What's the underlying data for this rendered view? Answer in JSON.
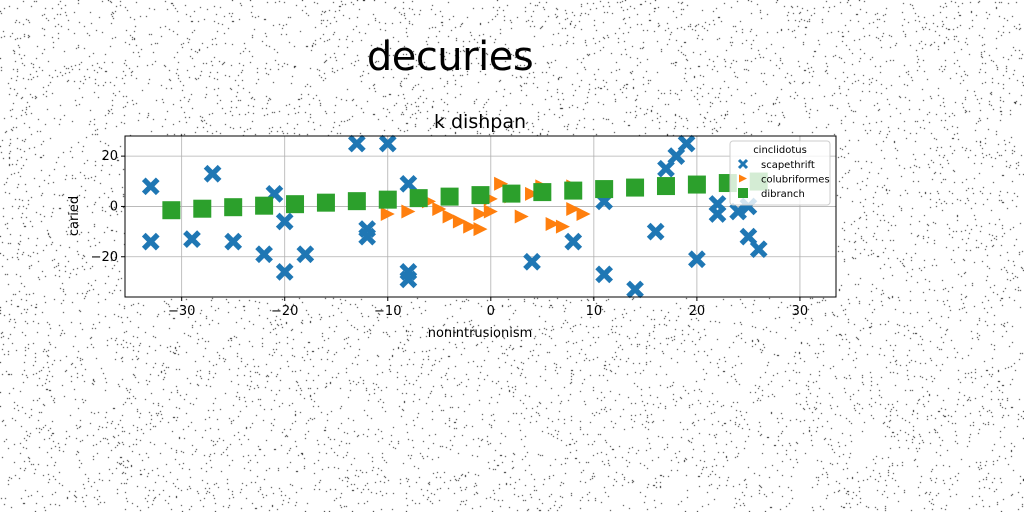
{
  "figure_title": "decuries",
  "chart_data": {
    "type": "scatter",
    "title": "k dishpan",
    "xlabel": "nonintrusionism",
    "ylabel": "caried",
    "xlim": [
      -35.5,
      33.5
    ],
    "ylim": [
      -36,
      28
    ],
    "xticks": [
      -30,
      -20,
      -10,
      0,
      10,
      20,
      30
    ],
    "yticks": [
      -20,
      0,
      20
    ],
    "xtick_labels": [
      "−30",
      "−20",
      "−10",
      "0",
      "10",
      "20",
      "30"
    ],
    "ytick_labels": [
      "−20",
      "0",
      "20"
    ],
    "grid": true,
    "legend": {
      "title": "cinclidotus",
      "position": "upper right"
    },
    "series": [
      {
        "name": "scapethrift",
        "marker": "x",
        "color": "#1f77b4",
        "x": [
          -33,
          -33,
          -29,
          -27,
          -25,
          -22,
          -21,
          -20,
          -20,
          -18,
          -13,
          -12,
          -12,
          -10,
          -8,
          -8,
          -8,
          4,
          8,
          11,
          11,
          14,
          16,
          17,
          18,
          19,
          20,
          22,
          22,
          24,
          25,
          25,
          26
        ],
        "y": [
          8,
          -14,
          -13,
          13,
          -14,
          -19,
          5,
          -6,
          -26,
          -19,
          25,
          -9,
          -12,
          25,
          9,
          -26,
          -29,
          -22,
          -14,
          2,
          -27,
          -33,
          -10,
          15,
          20,
          25,
          -21,
          1,
          -3,
          -2,
          0,
          -12,
          -17
        ]
      },
      {
        "name": "colubriformes",
        "marker": ">",
        "color": "#ff7f0e",
        "x": [
          -10,
          -8,
          -7,
          -6,
          -5,
          -4,
          -3,
          -2,
          -1,
          -1,
          0,
          0,
          1,
          2,
          3,
          4,
          5,
          6,
          7,
          8,
          8,
          9
        ],
        "y": [
          -3,
          -2,
          4,
          2,
          -1,
          -4,
          -6,
          -8,
          -9,
          -3,
          -2,
          3,
          9,
          4,
          -4,
          5,
          8,
          -7,
          -8,
          8,
          -1,
          -3
        ]
      },
      {
        "name": "dibranch",
        "marker": "s",
        "color": "#2ca02c",
        "x": [
          -31,
          -28,
          -25,
          -22,
          -19,
          -16,
          -13,
          -10,
          -7,
          -4,
          -1,
          2,
          5,
          8,
          11,
          14,
          17,
          20,
          23,
          26
        ],
        "y": [
          -1.5,
          -0.9,
          -0.3,
          0.3,
          0.9,
          1.5,
          2.1,
          2.7,
          3.3,
          3.9,
          4.5,
          5.1,
          5.7,
          6.3,
          6.9,
          7.5,
          8.1,
          8.7,
          9.3,
          9.9
        ]
      }
    ]
  }
}
